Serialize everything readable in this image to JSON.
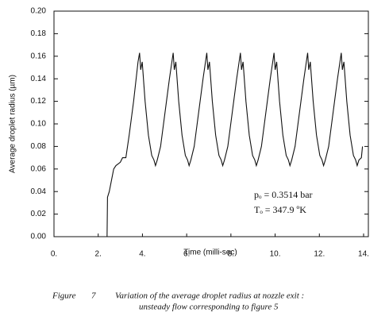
{
  "chart_data": {
    "type": "line",
    "xlabel": "Time (milli-sec)",
    "ylabel": "Average droplet radius (µm)",
    "xlim": [
      0,
      14
    ],
    "ylim": [
      0,
      0.2
    ],
    "xticks": [
      {
        "value": 0,
        "label": "0."
      },
      {
        "value": 2,
        "label": "2."
      },
      {
        "value": 4,
        "label": "4."
      },
      {
        "value": 6,
        "label": "6."
      },
      {
        "value": 8,
        "label": "8."
      },
      {
        "value": 10,
        "label": "10."
      },
      {
        "value": 12,
        "label": "12."
      },
      {
        "value": 14,
        "label": "14."
      }
    ],
    "yticks": [
      {
        "value": 0,
        "label": "0.00"
      },
      {
        "value": 0.02,
        "label": "0.02"
      },
      {
        "value": 0.04,
        "label": "0.04"
      },
      {
        "value": 0.06,
        "label": "0.06"
      },
      {
        "value": 0.08,
        "label": "0.08"
      },
      {
        "value": 0.1,
        "label": "0.10"
      },
      {
        "value": 0.12,
        "label": "0.12"
      },
      {
        "value": 0.14,
        "label": "0.14"
      },
      {
        "value": 0.16,
        "label": "0.16"
      },
      {
        "value": 0.18,
        "label": "0.18"
      },
      {
        "value": 0.2,
        "label": "0.20"
      }
    ],
    "grid": false,
    "annotations": [
      "pₒ = 0.3514 bar",
      "Tₒ = 347.9 ºK"
    ],
    "caption": {
      "label": "Figure",
      "number": "7",
      "line1": "Variation of the average droplet radius at nozzle exit :",
      "line2": "unsteady flow corresponding to figure  5"
    },
    "x": [
      0,
      2.4,
      2.42,
      2.5,
      2.6,
      2.7,
      2.8,
      3.0,
      3.1,
      3.25,
      3.4,
      3.6,
      3.8,
      3.87,
      3.92,
      3.99,
      4.12,
      4.27,
      4.42,
      4.52,
      4.59,
      4.67,
      4.82,
      5.02,
      5.22,
      5.39,
      5.44,
      5.51,
      5.64,
      5.79,
      5.94,
      6.04,
      6.11,
      6.19,
      6.34,
      6.54,
      6.74,
      6.91,
      6.96,
      7.03,
      7.16,
      7.31,
      7.46,
      7.56,
      7.63,
      7.71,
      7.86,
      8.06,
      8.26,
      8.43,
      8.48,
      8.55,
      8.68,
      8.83,
      8.98,
      9.08,
      9.15,
      9.23,
      9.38,
      9.58,
      9.78,
      9.95,
      10.0,
      10.07,
      10.2,
      10.35,
      10.5,
      10.6,
      10.67,
      10.75,
      10.9,
      11.1,
      11.3,
      11.47,
      11.52,
      11.59,
      11.72,
      11.87,
      12.02,
      12.12,
      12.19,
      12.27,
      12.42,
      12.62,
      12.82,
      12.99,
      13.04,
      13.11,
      13.24,
      13.39,
      13.54,
      13.64,
      13.71,
      13.79,
      13.9,
      13.95
    ],
    "series": [
      {
        "color": "#111111",
        "values": [
          0,
          0,
          0.035,
          0.04,
          0.05,
          0.06,
          0.063,
          0.066,
          0.07,
          0.07,
          0.09,
          0.12,
          0.155,
          0.163,
          0.148,
          0.155,
          0.12,
          0.09,
          0.072,
          0.068,
          0.063,
          0.068,
          0.08,
          0.11,
          0.14,
          0.163,
          0.148,
          0.155,
          0.12,
          0.09,
          0.072,
          0.068,
          0.063,
          0.068,
          0.08,
          0.11,
          0.14,
          0.163,
          0.148,
          0.155,
          0.12,
          0.09,
          0.072,
          0.068,
          0.063,
          0.068,
          0.08,
          0.11,
          0.14,
          0.163,
          0.148,
          0.155,
          0.12,
          0.09,
          0.072,
          0.068,
          0.063,
          0.068,
          0.08,
          0.11,
          0.14,
          0.163,
          0.148,
          0.155,
          0.12,
          0.09,
          0.072,
          0.068,
          0.063,
          0.068,
          0.08,
          0.11,
          0.14,
          0.163,
          0.148,
          0.155,
          0.12,
          0.09,
          0.072,
          0.068,
          0.063,
          0.068,
          0.08,
          0.11,
          0.14,
          0.163,
          0.148,
          0.155,
          0.12,
          0.09,
          0.072,
          0.068,
          0.063,
          0.068,
          0.07,
          0.08
        ]
      }
    ]
  }
}
